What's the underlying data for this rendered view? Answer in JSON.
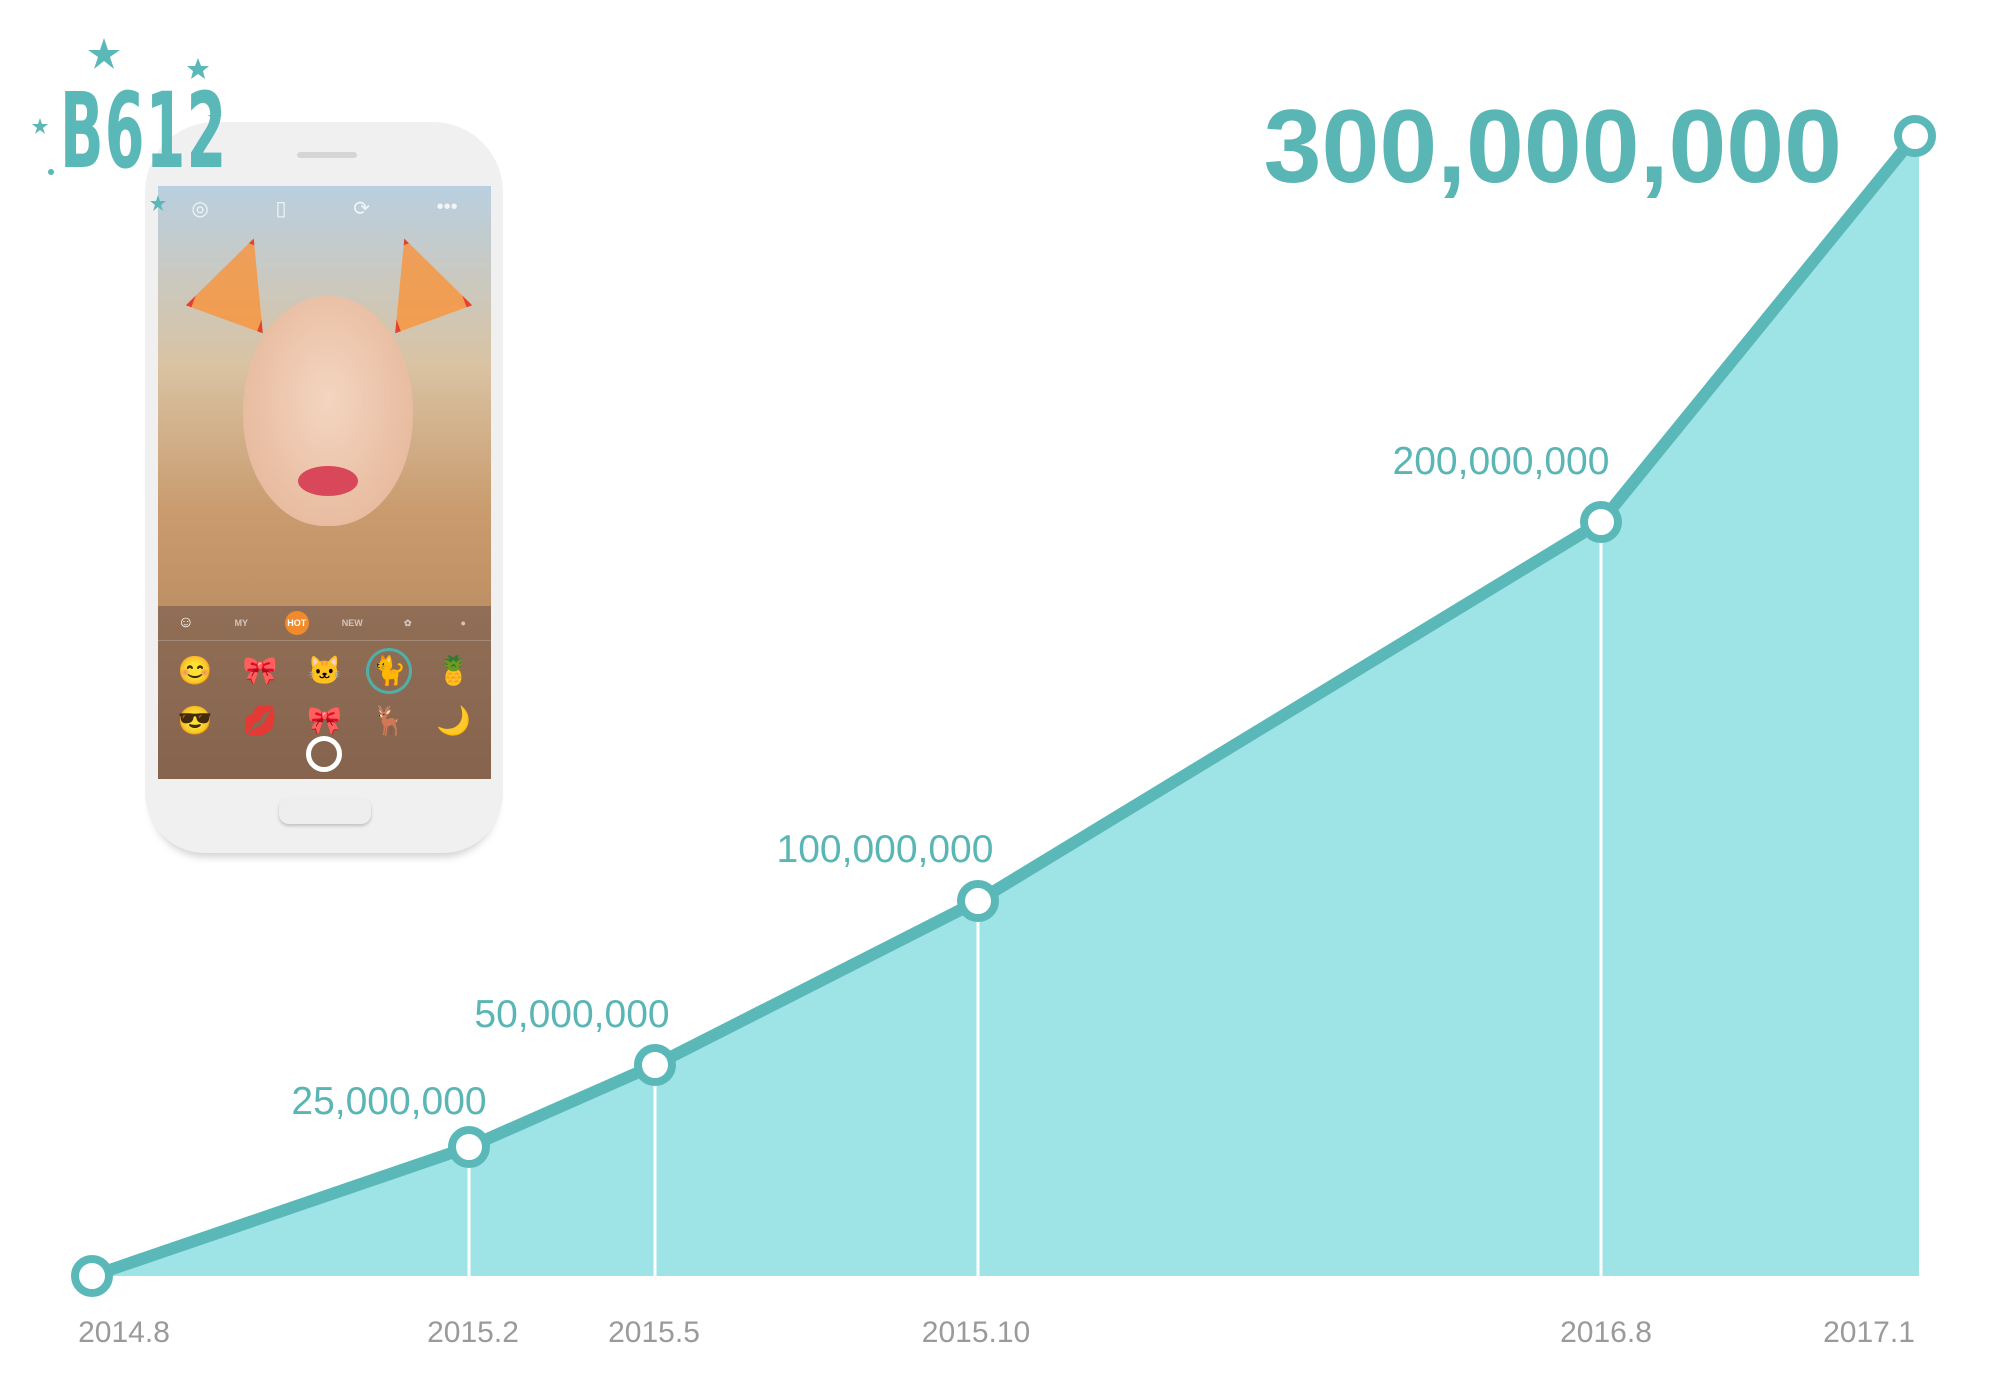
{
  "logo": {
    "text": "B612"
  },
  "phone": {
    "tabs": [
      "MY",
      "HOT",
      "NEW"
    ]
  },
  "chart_data": {
    "type": "area",
    "title": "",
    "xlabel": "",
    "ylabel": "",
    "categories": [
      "2014.8",
      "2015.2",
      "2015.5",
      "2015.10",
      "2016.8",
      "2017.1"
    ],
    "values": [
      0,
      25000000,
      50000000,
      100000000,
      200000000,
      300000000
    ],
    "data_labels": [
      "",
      "25,000,000",
      "50,000,000",
      "100,000,000",
      "200,000,000",
      "300,000,000"
    ],
    "grid": false,
    "legend": "none",
    "colors": {
      "line": "#5bb8b8",
      "fill": "#9ee3e5",
      "label": "#5ab5b5",
      "tick": "#9a9a9a",
      "marker_fill": "#ffffff"
    }
  }
}
